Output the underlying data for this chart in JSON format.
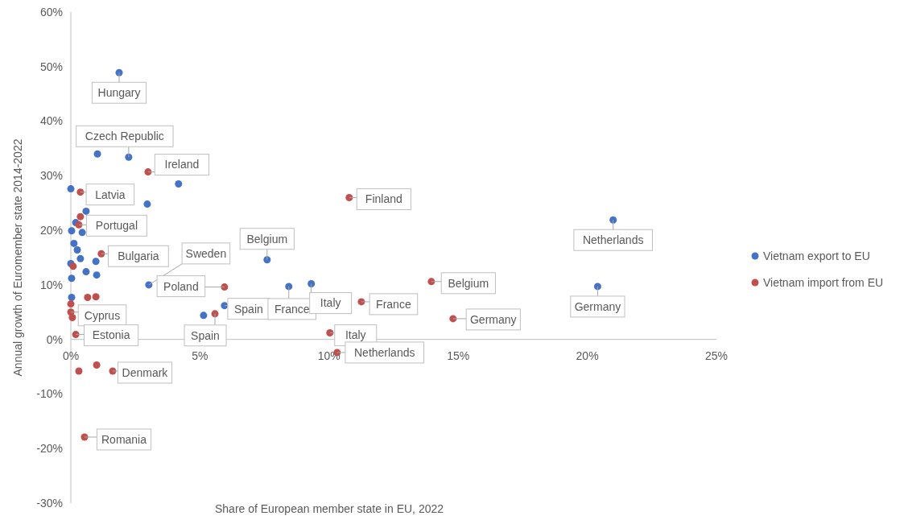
{
  "chart_data": {
    "type": "scatter",
    "xlabel": "Share of European member state in EU, 2022",
    "ylabel": "Annual growth of Euromember state 2014-2022",
    "xlim": [
      0,
      25
    ],
    "ylim": [
      -30,
      60
    ],
    "xticks": [
      {
        "value": 0,
        "label": "0%"
      },
      {
        "value": 5,
        "label": "5%"
      },
      {
        "value": 10,
        "label": "10%"
      },
      {
        "value": 15,
        "label": "15%"
      },
      {
        "value": 20,
        "label": "20%"
      },
      {
        "value": 25,
        "label": "25%"
      }
    ],
    "yticks": [
      {
        "value": -30,
        "label": "-30%"
      },
      {
        "value": -20,
        "label": "-20%"
      },
      {
        "value": -10,
        "label": "-10%"
      },
      {
        "value": 0,
        "label": "0%"
      },
      {
        "value": 10,
        "label": "10%"
      },
      {
        "value": 20,
        "label": "20%"
      },
      {
        "value": 30,
        "label": "30%"
      },
      {
        "value": 40,
        "label": "40%"
      },
      {
        "value": 50,
        "label": "50%"
      },
      {
        "value": 60,
        "label": "60%"
      }
    ],
    "marker": "circle",
    "legend": "right",
    "series": [
      {
        "name": "Vietnam export to EU",
        "color": "#4472c4",
        "x": [
          1.87,
          1.03,
          2.24,
          4.17,
          0,
          2.96,
          0.59,
          0.19,
          0.03,
          0.44,
          0.12,
          0.25,
          0.37,
          0.97,
          0,
          0.59,
          1.0,
          0.03,
          3.02,
          0.03,
          5.14,
          5.95,
          7.6,
          8.44,
          9.31,
          21.0,
          20.4
        ],
        "values": [
          48.9,
          34.0,
          33.4,
          28.5,
          27.6,
          24.8,
          23.5,
          21.4,
          19.9,
          19.6,
          17.6,
          16.4,
          14.8,
          14.3,
          13.9,
          12.4,
          11.8,
          11.2,
          10.0,
          7.7,
          4.4,
          6.2,
          14.6,
          9.7,
          10.2,
          21.9,
          9.7
        ]
      },
      {
        "name": "Vietnam import from EU",
        "color": "#c0504d",
        "x": [
          2.99,
          0.37,
          0.37,
          0.31,
          1.18,
          0.09,
          5.95,
          0.65,
          0.97,
          0,
          0,
          0.06,
          5.58,
          0.19,
          0.31,
          1.0,
          1.62,
          0.53,
          10.78,
          13.96,
          11.25,
          14.8,
          10.03,
          10.31
        ],
        "values": [
          30.7,
          27.0,
          22.5,
          21.0,
          15.7,
          13.4,
          9.6,
          7.7,
          7.8,
          6.5,
          5.0,
          4.0,
          4.7,
          0.9,
          -5.8,
          -4.7,
          -5.8,
          -17.9,
          26.0,
          10.6,
          6.9,
          3.8,
          1.2,
          -2.4
        ]
      }
    ],
    "annotations": [
      {
        "text": "Hungary",
        "x": 1.87,
        "y": 48.9
      },
      {
        "text": "Czech Republic",
        "x": 2.24,
        "y": 33.4
      },
      {
        "text": "Ireland",
        "x": 2.99,
        "y": 30.7
      },
      {
        "text": "Latvia",
        "x": 0.37,
        "y": 27.0
      },
      {
        "text": "Portugal",
        "x": 0.31,
        "y": 21.0
      },
      {
        "text": "Bulgaria",
        "x": 1.18,
        "y": 15.7
      },
      {
        "text": "Sweden",
        "x": 3.02,
        "y": 10.0
      },
      {
        "text": "Poland",
        "x": 5.95,
        "y": 9.6
      },
      {
        "text": "Belgium",
        "x": 7.6,
        "y": 14.6
      },
      {
        "text": "Cyprus",
        "x": 0,
        "y": 5.0
      },
      {
        "text": "Estonia",
        "x": 0.19,
        "y": 0.9
      },
      {
        "text": "Spain",
        "x": 5.95,
        "y": 6.2
      },
      {
        "text": "Spain",
        "x": 5.58,
        "y": 4.7
      },
      {
        "text": "France",
        "x": 8.44,
        "y": 9.7
      },
      {
        "text": "Italy",
        "x": 9.31,
        "y": 10.2
      },
      {
        "text": "Finland",
        "x": 10.78,
        "y": 26.0
      },
      {
        "text": "Belgium",
        "x": 13.96,
        "y": 10.6
      },
      {
        "text": "France",
        "x": 11.25,
        "y": 6.9
      },
      {
        "text": "Germany",
        "x": 14.8,
        "y": 3.8
      },
      {
        "text": "Italy",
        "x": 10.03,
        "y": 1.2
      },
      {
        "text": "Netherlands",
        "x": 10.31,
        "y": -2.4
      },
      {
        "text": "Denmark",
        "x": 1.62,
        "y": -5.8
      },
      {
        "text": "Romania",
        "x": 0.53,
        "y": -17.9
      },
      {
        "text": "Netherlands",
        "x": 21.0,
        "y": 21.9
      },
      {
        "text": "Germany",
        "x": 20.4,
        "y": 9.7
      }
    ]
  }
}
